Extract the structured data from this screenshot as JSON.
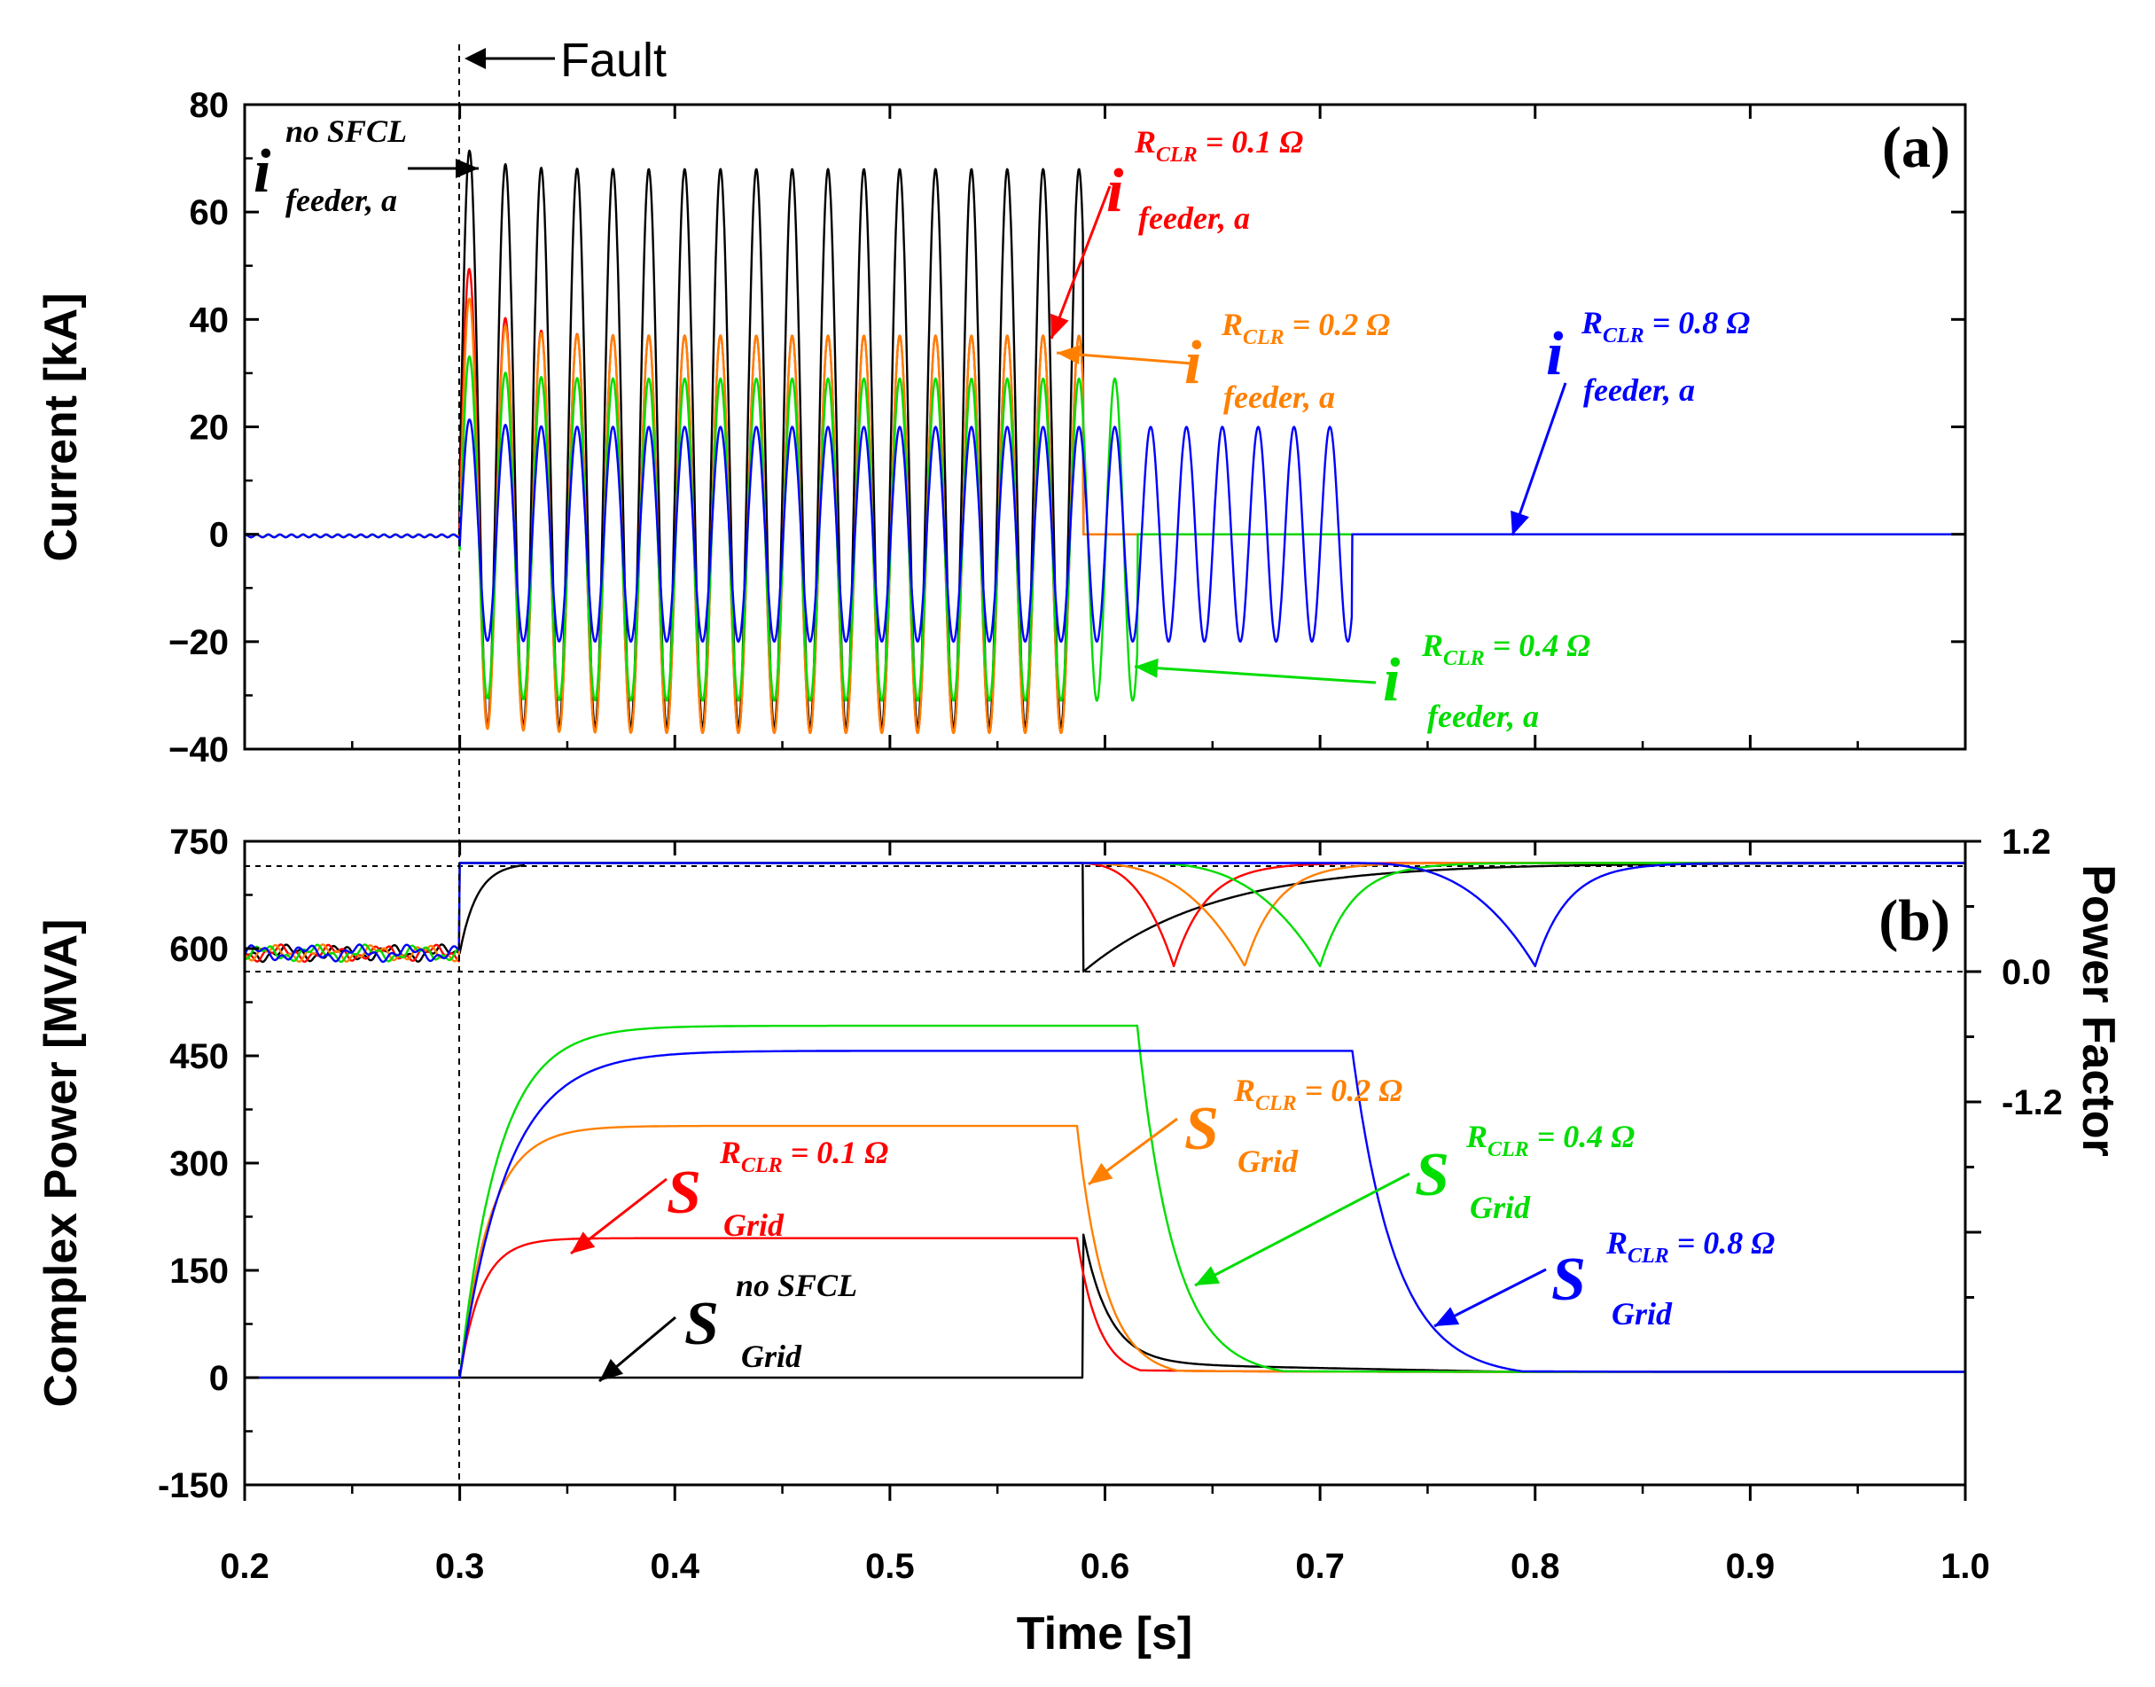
{
  "chart_data": [
    {
      "panel": "a",
      "type": "line",
      "panel_label": "(a)",
      "xlabel": "Time [s]",
      "ylabel": "Current [kA]",
      "xlim": [
        0.2,
        1.0
      ],
      "ylim": [
        -40,
        80
      ],
      "x_ticks": [
        "0.2",
        "0.3",
        "0.4",
        "0.5",
        "0.6",
        "0.7",
        "0.8",
        "0.9",
        "1.0"
      ],
      "y_ticks": [
        "80",
        "60",
        "40",
        "20",
        "0",
        "-20",
        "-40"
      ],
      "fault_time": 0.3,
      "fault_label": "Fault",
      "frequency_hz": 60,
      "series": [
        {
          "name": "no SFCL",
          "color": "#000000",
          "peak_first": 73,
          "peak_steady": 68,
          "trough": -36,
          "clear_time": 0.59,
          "label": {
            "sym": "i",
            "sup": "no SFCL",
            "sub": "feeder, a"
          }
        },
        {
          "name": "R_CLR = 0.1 Ω",
          "color": "#ff0000",
          "peak_first": 55,
          "peak_steady": 37,
          "trough": -37,
          "clear_time": 0.59,
          "label": {
            "sym": "i",
            "sup": "R",
            "sup_sub": "CLR",
            "sup_tail": " = 0.1 Ω",
            "sub": "feeder, a"
          }
        },
        {
          "name": "R_CLR = 0.2 Ω",
          "color": "#ff8000",
          "peak_first": 47,
          "peak_steady": 37,
          "trough": -37,
          "clear_time": 0.59,
          "label": {
            "sym": "i",
            "sup": "R",
            "sup_sub": "CLR",
            "sup_tail": " = 0.2 Ω",
            "sub": "feeder, a"
          }
        },
        {
          "name": "R_CLR = 0.4 Ω",
          "color": "#00dd00",
          "peak_first": 35,
          "peak_steady": 29,
          "trough": -31,
          "clear_time": 0.615,
          "label": {
            "sym": "i",
            "sup": "R",
            "sup_sub": "CLR",
            "sup_tail": " = 0.4 Ω",
            "sub": "feeder, a"
          }
        },
        {
          "name": "R_CLR = 0.8 Ω",
          "color": "#0000ff",
          "peak_first": 22,
          "peak_steady": 20,
          "trough": -20,
          "clear_time": 0.715,
          "label": {
            "sym": "i",
            "sup": "R",
            "sup_sub": "CLR",
            "sup_tail": " = 0.8 Ω",
            "sub": "feeder, a"
          }
        }
      ]
    },
    {
      "panel": "b",
      "type": "line",
      "panel_label": "(b)",
      "xlabel": "Time [s]",
      "ylabel": "Complex Power [MVA]",
      "y2label": "Power Factor",
      "xlim": [
        0.2,
        1.0
      ],
      "ylim": [
        -150,
        750
      ],
      "y2_ticks": [
        "1.2",
        "0.0",
        "-1.2"
      ],
      "x_ticks": [
        "0.2",
        "0.3",
        "0.4",
        "0.5",
        "0.6",
        "0.7",
        "0.8",
        "0.9",
        "1.0"
      ],
      "y_ticks": [
        "750",
        "600",
        "450",
        "300",
        "150",
        "0",
        "-150"
      ],
      "pf_reference_lines": [
        1.0,
        0.0
      ],
      "series": [
        {
          "name": "no SFCL",
          "color": "#000000",
          "S_plateau": 0,
          "S_spike": 200,
          "spike_time": 0.59,
          "tail": 20,
          "settle": 8,
          "pf_dip_time": 0.59,
          "label": {
            "sym": "S",
            "sup": "no SFCL",
            "sub": "Grid"
          }
        },
        {
          "name": "R_CLR = 0.1 Ω",
          "color": "#ff0000",
          "S_plateau": 195,
          "release_time": 0.587,
          "tau": 0.01,
          "pf_dip_time": 0.632,
          "label": {
            "sym": "S",
            "sup": "R",
            "sup_sub": "CLR",
            "sup_tail": " = 0.1 Ω",
            "sub": "Grid"
          }
        },
        {
          "name": "R_CLR = 0.2 Ω",
          "color": "#ff8000",
          "S_plateau": 352,
          "release_time": 0.587,
          "tau": 0.013,
          "pf_dip_time": 0.665,
          "label": {
            "sym": "S",
            "sup": "R",
            "sup_sub": "CLR",
            "sup_tail": " = 0.2 Ω",
            "sub": "Grid"
          }
        },
        {
          "name": "R_CLR = 0.4 Ω",
          "color": "#00dd00",
          "S_plateau": 492,
          "release_time": 0.615,
          "tau": 0.017,
          "pf_dip_time": 0.7,
          "label": {
            "sym": "S",
            "sup": "R",
            "sup_sub": "CLR",
            "sup_tail": " = 0.4 Ω",
            "sub": "Grid"
          }
        },
        {
          "name": "R_CLR = 0.8 Ω",
          "color": "#0000ff",
          "S_plateau": 457,
          "release_time": 0.715,
          "tau": 0.02,
          "pf_dip_time": 0.8,
          "label": {
            "sym": "S",
            "sup": "R",
            "sup_sub": "CLR",
            "sup_tail": " = 0.8 Ω",
            "sub": "Grid"
          }
        }
      ]
    }
  ]
}
